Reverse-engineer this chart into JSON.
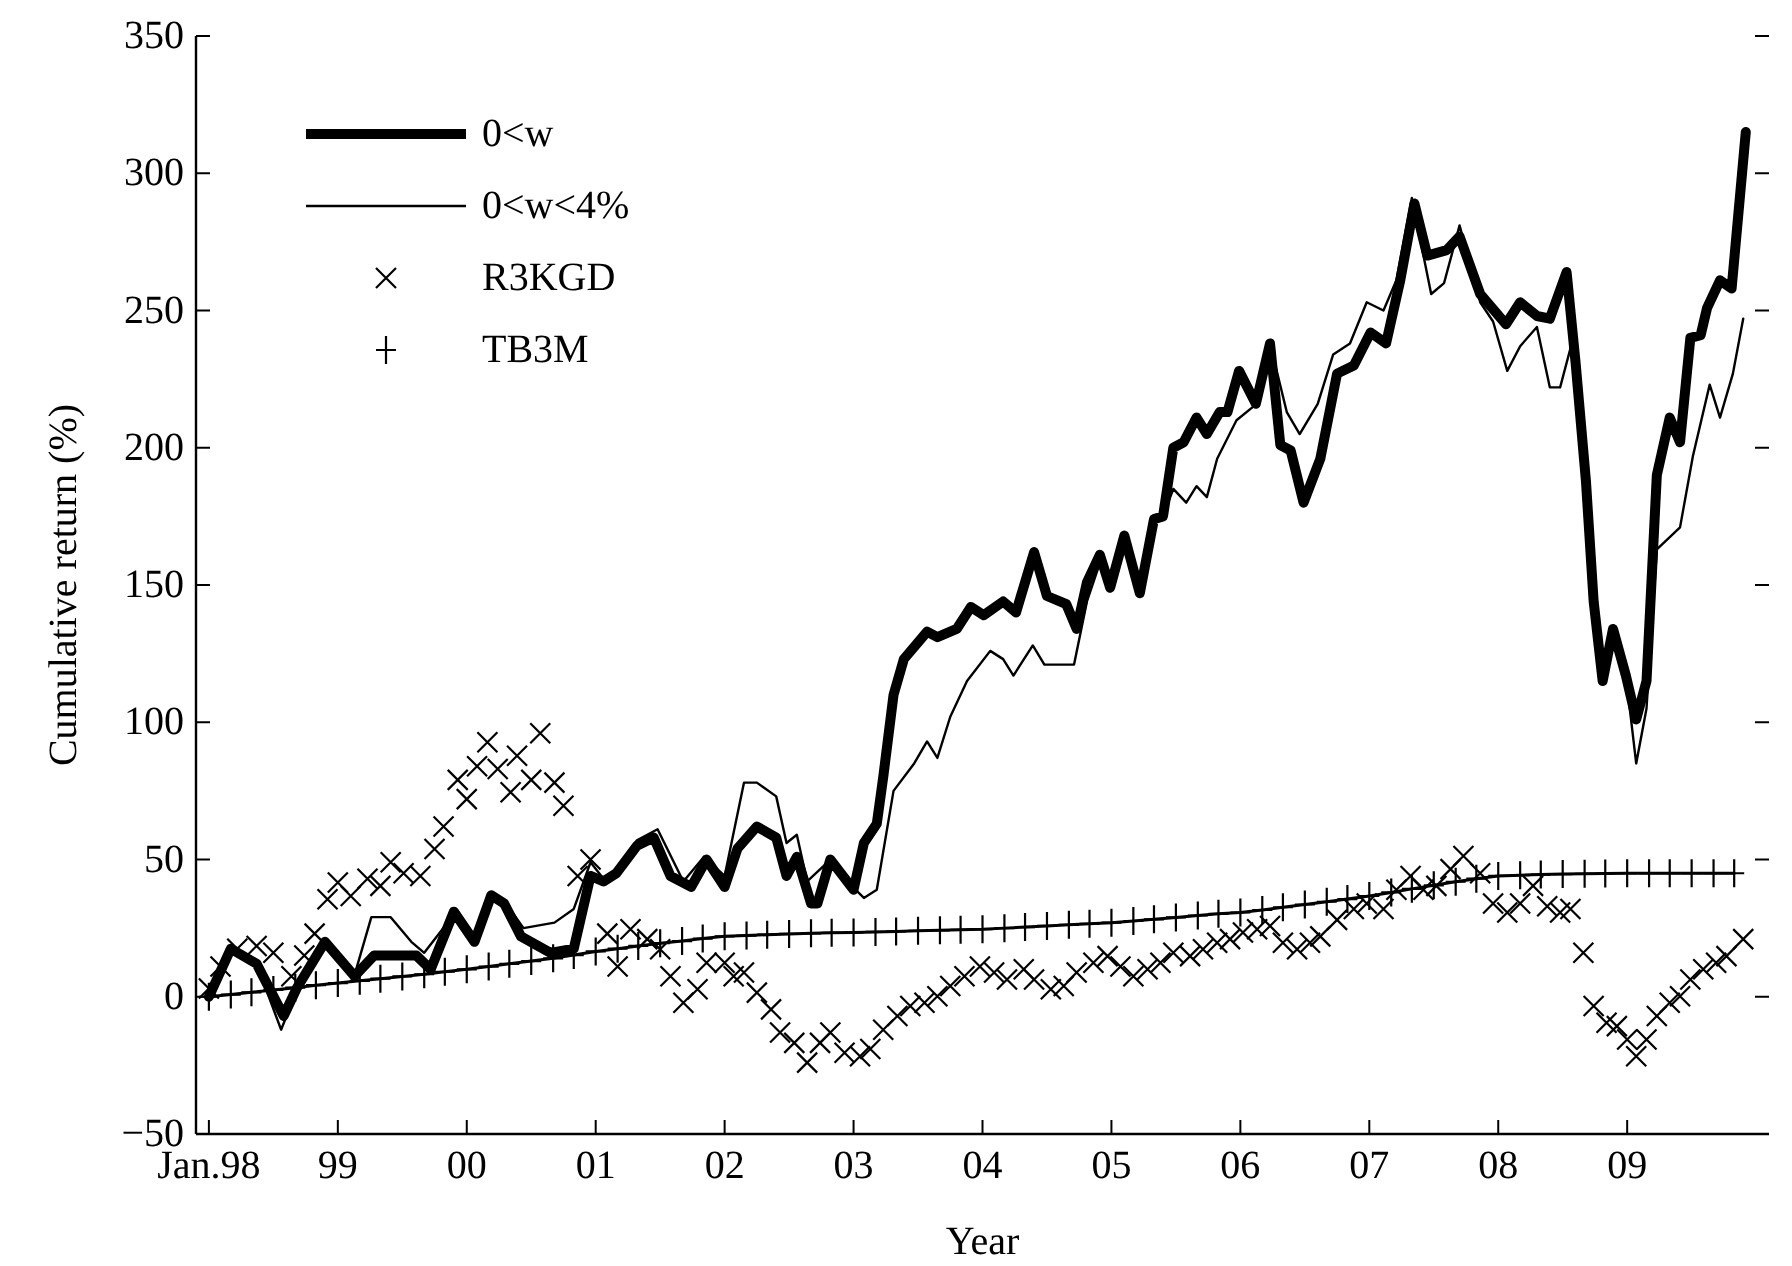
{
  "chart_data": {
    "type": "line",
    "xlabel": "Year",
    "ylabel": "Cumulative return (%)",
    "xlim": [
      1997.9,
      2010.1
    ],
    "ylim": [
      -50,
      350
    ],
    "xticks": [
      {
        "value": 1998,
        "label": "Jan.98"
      },
      {
        "value": 1999,
        "label": "99"
      },
      {
        "value": 2000,
        "label": "00"
      },
      {
        "value": 2001,
        "label": "01"
      },
      {
        "value": 2002,
        "label": "02"
      },
      {
        "value": 2003,
        "label": "03"
      },
      {
        "value": 2004,
        "label": "04"
      },
      {
        "value": 2005,
        "label": "05"
      },
      {
        "value": 2006,
        "label": "06"
      },
      {
        "value": 2007,
        "label": "07"
      },
      {
        "value": 2008,
        "label": "08"
      },
      {
        "value": 2009,
        "label": "09"
      }
    ],
    "yticks": [
      {
        "value": -50,
        "label": "−50"
      },
      0,
      50,
      100,
      150,
      200,
      250,
      300,
      350
    ],
    "legend": "top left",
    "series": [
      {
        "name": "0<w",
        "color": "#000000",
        "marker": "none",
        "x": [
          1998.0,
          1998.17,
          1998.37,
          1998.58,
          1998.68,
          1998.9,
          1999.13,
          1999.28,
          1999.61,
          1999.72,
          1999.9,
          2000.06,
          2000.19,
          2000.29,
          2000.42,
          2000.65,
          2000.83,
          2000.96,
          2001.06,
          2001.16,
          2001.32,
          2001.45,
          2001.58,
          2001.74,
          2001.86,
          2002.0,
          2002.1,
          2002.25,
          2002.4,
          2002.48,
          2002.56,
          2002.67,
          2002.72,
          2002.82,
          2003.0,
          2003.08,
          2003.18,
          2003.23,
          2003.31,
          2003.39,
          2003.57,
          2003.65,
          2003.8,
          2003.91,
          2004.01,
          2004.16,
          2004.26,
          2004.4,
          2004.5,
          2004.65,
          2004.73,
          2004.81,
          2004.91,
          2004.99,
          2005.1,
          2005.22,
          2005.33,
          2005.4,
          2005.48,
          2005.56,
          2005.66,
          2005.74,
          2005.84,
          2005.9,
          2005.99,
          2006.12,
          2006.23,
          2006.31,
          2006.39,
          2006.49,
          2006.62,
          2006.75,
          2006.88,
          2007.01,
          2007.13,
          2007.24,
          2007.35,
          2007.45,
          2007.6,
          2007.7,
          2007.86,
          2008.06,
          2008.17,
          2008.3,
          2008.4,
          2008.53,
          2008.6,
          2008.68,
          2008.74,
          2008.81,
          2008.89,
          2008.99,
          2009.07,
          2009.15,
          2009.23,
          2009.33,
          2009.41,
          2009.49,
          2009.57,
          2009.62,
          2009.72,
          2009.81,
          2009.92
        ],
        "values": [
          0,
          17.5,
          12,
          -7,
          3,
          20,
          7.5,
          15,
          15,
          10,
          31,
          20,
          37,
          34,
          22,
          16,
          17.5,
          44,
          42,
          45,
          55,
          58,
          44,
          40,
          50,
          40,
          54,
          62,
          58,
          44,
          51,
          34,
          34,
          50,
          39,
          56,
          63,
          80,
          110,
          123,
          133,
          131,
          134,
          142,
          139,
          144,
          140,
          162,
          146,
          143,
          134,
          151,
          161,
          149,
          168,
          147,
          174,
          175,
          200,
          202,
          211,
          205,
          213,
          213,
          228,
          216,
          238,
          201,
          199,
          180,
          196,
          227,
          230,
          242,
          238,
          261,
          289,
          270,
          272,
          277,
          256,
          245,
          253,
          248,
          247,
          264,
          231,
          188,
          144,
          115,
          134,
          117,
          101,
          115,
          190,
          211,
          202,
          240,
          241,
          251,
          261,
          258,
          315
        ]
      },
      {
        "name": "0<w<4%",
        "color": "#000000",
        "marker": "none",
        "x": [
          1998.0,
          1998.17,
          1998.37,
          1998.56,
          1998.68,
          1998.9,
          1999.13,
          1999.26,
          1999.41,
          1999.57,
          1999.67,
          1999.9,
          2000.06,
          2000.19,
          2000.29,
          2000.44,
          2000.68,
          2000.83,
          2000.96,
          2001.06,
          2001.16,
          2001.32,
          2001.48,
          2001.68,
          2001.84,
          2002.0,
          2002.15,
          2002.25,
          2002.4,
          2002.48,
          2002.56,
          2002.64,
          2002.8,
          2002.95,
          2003.08,
          2003.18,
          2003.31,
          2003.47,
          2003.57,
          2003.65,
          2003.75,
          2003.88,
          2004.06,
          2004.16,
          2004.24,
          2004.39,
          2004.48,
          2004.71,
          2004.81,
          2004.91,
          2004.99,
          2005.1,
          2005.22,
          2005.33,
          2005.4,
          2005.48,
          2005.58,
          2005.66,
          2005.74,
          2005.82,
          2005.97,
          2006.1,
          2006.23,
          2006.36,
          2006.46,
          2006.6,
          2006.72,
          2006.85,
          2006.98,
          2007.11,
          2007.21,
          2007.33,
          2007.48,
          2007.58,
          2007.7,
          2007.86,
          2007.96,
          2008.07,
          2008.17,
          2008.3,
          2008.4,
          2008.48,
          2008.57,
          2008.68,
          2008.74,
          2008.81,
          2008.89,
          2008.99,
          2009.07,
          2009.15,
          2009.23,
          2009.41,
          2009.51,
          2009.64,
          2009.72,
          2009.82,
          2009.9
        ],
        "values": [
          0,
          17,
          12,
          -12,
          2,
          19,
          8,
          29,
          29,
          20,
          16,
          30,
          21,
          37,
          35,
          25,
          27,
          32,
          49,
          43,
          46,
          57,
          61,
          42,
          51,
          44,
          78,
          78,
          73,
          56,
          59,
          42,
          49,
          42,
          36,
          39,
          75,
          85,
          93,
          87,
          102,
          115,
          126,
          123,
          117,
          128,
          121,
          121,
          144,
          158,
          150,
          165,
          150,
          172,
          175,
          185,
          180,
          186,
          182,
          196,
          210,
          215,
          238,
          213,
          205,
          216,
          234,
          238,
          253,
          250,
          261,
          291,
          256,
          260,
          281,
          253,
          246,
          228,
          237,
          244,
          222,
          222,
          238,
          190,
          144,
          115,
          132,
          117,
          85,
          105,
          163,
          171,
          197,
          223,
          211,
          227,
          247
        ]
      },
      {
        "name": "R3KGD",
        "type": "scatter",
        "color": "#000000",
        "marker": "x",
        "x": [
          1998.0,
          1998.09,
          1998.22,
          1998.37,
          1998.5,
          1998.64,
          1998.74,
          1998.82,
          1998.92,
          1999.0,
          1999.1,
          1999.23,
          1999.33,
          1999.41,
          1999.51,
          1999.64,
          1999.75,
          1999.82,
          1999.93,
          2000.0,
          2000.08,
          2000.16,
          2000.24,
          2000.34,
          2000.39,
          2000.5,
          2000.57,
          2000.68,
          2000.75,
          2000.86,
          2000.96,
          2001.09,
          2001.17,
          2001.27,
          2001.4,
          2001.5,
          2001.58,
          2001.68,
          2001.79,
          2001.86,
          2002.0,
          2002.07,
          2002.15,
          2002.25,
          2002.36,
          2002.43,
          2002.54,
          2002.64,
          2002.74,
          2002.82,
          2002.93,
          2003.05,
          2003.13,
          2003.23,
          2003.34,
          2003.44,
          2003.55,
          2003.65,
          2003.75,
          2003.86,
          2003.98,
          2004.09,
          2004.19,
          2004.32,
          2004.4,
          2004.53,
          2004.63,
          2004.73,
          2004.86,
          2004.97,
          2005.07,
          2005.17,
          2005.28,
          2005.38,
          2005.48,
          2005.61,
          2005.71,
          2005.82,
          2005.92,
          2006.02,
          2006.13,
          2006.23,
          2006.33,
          2006.44,
          2006.54,
          2006.62,
          2006.75,
          2006.88,
          2006.98,
          2007.11,
          2007.21,
          2007.32,
          2007.42,
          2007.52,
          2007.63,
          2007.73,
          2007.86,
          2007.96,
          2008.07,
          2008.17,
          2008.27,
          2008.38,
          2008.48,
          2008.56,
          2008.66,
          2008.74,
          2008.84,
          2008.92,
          2009.0,
          2009.07,
          2009.15,
          2009.23,
          2009.33,
          2009.41,
          2009.49,
          2009.59,
          2009.69,
          2009.77,
          2009.9
        ],
        "values": [
          3,
          11,
          17.5,
          18.5,
          16,
          7.5,
          15,
          23,
          35.5,
          41.6,
          36.7,
          43,
          40.4,
          49,
          45,
          44,
          53.8,
          62,
          79,
          72,
          84,
          92.7,
          83,
          74.5,
          87.8,
          79,
          96,
          78,
          69.6,
          44,
          50,
          23,
          11,
          24.6,
          21,
          17.3,
          7.5,
          -2.2,
          2.7,
          12.4,
          12.4,
          7.5,
          8.8,
          1.5,
          -4.6,
          -13,
          -16.8,
          -24,
          -16.8,
          -13,
          -20.4,
          -21.7,
          -19,
          -12,
          -7,
          -3.4,
          -2.2,
          0.2,
          3.9,
          7.5,
          11,
          8.8,
          6.3,
          10,
          6.3,
          2.7,
          3.9,
          8.8,
          12.4,
          14.8,
          11,
          7.5,
          10,
          12.4,
          16,
          14.8,
          17.3,
          19.7,
          21,
          23.4,
          24.6,
          25.8,
          19.7,
          17.3,
          19.7,
          22,
          28,
          32,
          34,
          32,
          39,
          44,
          39,
          40.4,
          46.5,
          51.3,
          45,
          34,
          30.7,
          34,
          40.4,
          33,
          30.7,
          32,
          16,
          -3.4,
          -9.5,
          -10.7,
          -15.6,
          -21.7,
          -15.6,
          -7,
          -2.2,
          0.2,
          6.3,
          10,
          12.4,
          14.8,
          21
        ]
      },
      {
        "name": "TB3M",
        "color": "#000000",
        "marker": "cross",
        "x": [
          1998.0,
          1998.17,
          1998.33,
          1998.5,
          1998.67,
          1998.83,
          1999.0,
          1999.17,
          1999.33,
          1999.5,
          1999.67,
          1999.83,
          2000.0,
          2000.17,
          2000.33,
          2000.5,
          2000.67,
          2000.83,
          2001.0,
          2001.17,
          2001.33,
          2001.5,
          2001.67,
          2001.83,
          2002.0,
          2002.17,
          2002.33,
          2002.5,
          2002.67,
          2002.83,
          2003.0,
          2003.17,
          2003.33,
          2003.5,
          2003.67,
          2003.83,
          2004.0,
          2004.17,
          2004.33,
          2004.5,
          2004.67,
          2004.83,
          2005.0,
          2005.17,
          2005.33,
          2005.5,
          2005.67,
          2005.83,
          2006.0,
          2006.17,
          2006.33,
          2006.5,
          2006.67,
          2006.83,
          2007.0,
          2007.17,
          2007.33,
          2007.5,
          2007.67,
          2007.83,
          2008.0,
          2008.17,
          2008.33,
          2008.5,
          2008.67,
          2008.83,
          2009.0,
          2009.17,
          2009.33,
          2009.5,
          2009.67,
          2009.83
        ],
        "values": [
          0,
          0.8,
          1.6,
          2.5,
          3.3,
          4.2,
          5,
          5.8,
          6.6,
          7.4,
          8.2,
          9.1,
          10,
          11,
          12,
          13,
          14,
          15.2,
          16.5,
          17.5,
          18.5,
          19.5,
          20.3,
          21.2,
          22,
          22.3,
          22.6,
          22.9,
          23.1,
          23.3,
          23.4,
          23.6,
          23.8,
          24,
          24.2,
          24.4,
          24.6,
          25,
          25.4,
          25.8,
          26.2,
          26.6,
          27,
          27.6,
          28.2,
          28.9,
          29.6,
          30.2,
          30.7,
          31.6,
          32.6,
          33.6,
          34.6,
          35.6,
          36.7,
          38,
          39.3,
          40.6,
          41.9,
          43,
          44,
          44.3,
          44.5,
          44.7,
          44.8,
          44.9,
          45,
          45,
          45,
          45,
          45,
          45
        ]
      }
    ]
  }
}
